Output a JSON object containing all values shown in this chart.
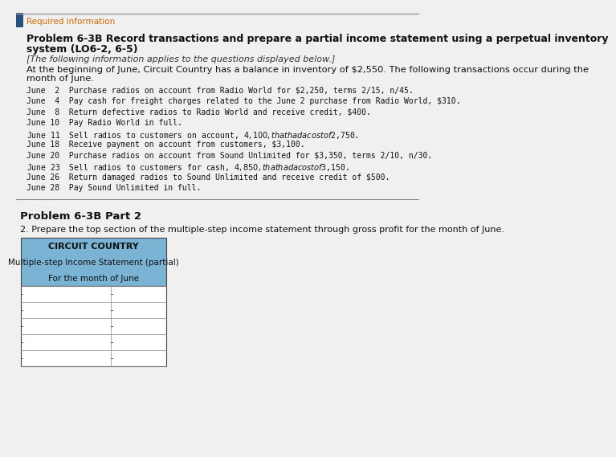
{
  "bg_color": "#f0f0f0",
  "required_info_label": "Required information",
  "problem_title": "Problem 6-3B Record transactions and prepare a partial income statement using a perpetual inventory\nsystem (LO6-2, 6-5)",
  "italic_note": "[The following information applies to the questions displayed below.]",
  "intro_text": "At the beginning of June, Circuit Country has a balance in inventory of $2,550. The following transactions occur during the\nmonth of June.",
  "transactions": [
    "June  2  Purchase radios on account from Radio World for $2,250, terms 2/15, n/45.",
    "June  4  Pay cash for freight charges related to the June 2 purchase from Radio World, $310.",
    "June  8  Return defective radios to Radio World and receive credit, $400.",
    "June 10  Pay Radio World in full.",
    "June 11  Sell radios to customers on account, $4,100, that had a cost of $2,750.",
    "June 18  Receive payment on account from customers, $3,100.",
    "June 20  Purchase radios on account from Sound Unlimited for $3,350, terms 2/10, n/30.",
    "June 23  Sell radios to customers for cash, $4,850, that had a cost of $3,150.",
    "June 26  Return damaged radios to Sound Unlimited and receive credit of $500.",
    "June 28  Pay Sound Unlimited in full."
  ],
  "part2_label": "Problem 6-3B Part 2",
  "part2_instruction": "2. Prepare the top section of the multiple-step income statement through gross profit for the month of June.",
  "table_header_bg": "#7ab3d4",
  "table_header_lines": [
    "CIRCUIT COUNTRY",
    "Multiple-step Income Statement (partial)",
    "For the month of June"
  ],
  "table_num_rows": 5
}
